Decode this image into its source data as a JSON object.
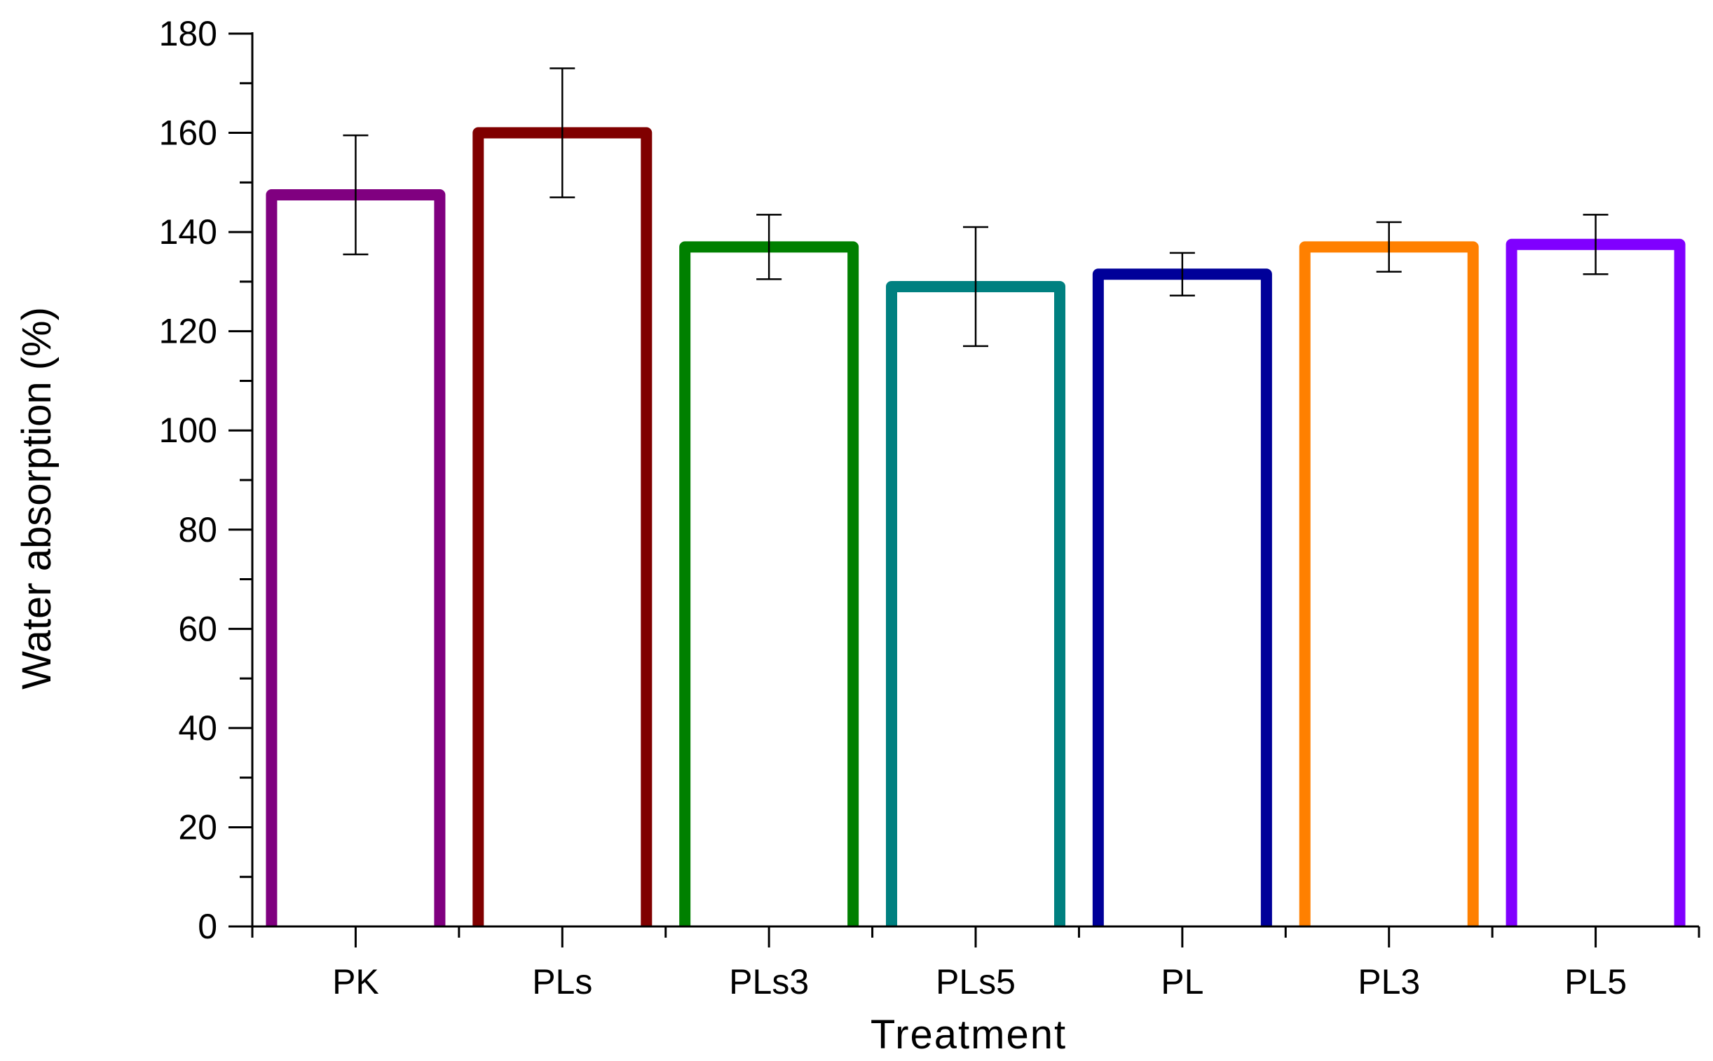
{
  "chart_data": {
    "type": "bar",
    "title": "",
    "xlabel": "Treatment",
    "ylabel": "Water absorption (%)",
    "ylim": [
      0,
      180
    ],
    "yticks": [
      0,
      20,
      40,
      60,
      80,
      100,
      120,
      140,
      160,
      180
    ],
    "y_minor_step": 10,
    "grid": false,
    "bar_style": "outline",
    "categories": [
      "PK",
      "PLs",
      "PLs3",
      "PLs5",
      "PL",
      "PL3",
      "PL5"
    ],
    "values": [
      147.5,
      160,
      137,
      129,
      131.5,
      137,
      137.5
    ],
    "error": [
      12,
      13,
      6.5,
      12,
      4.3,
      5,
      6
    ],
    "colors": [
      "#800080",
      "#800000",
      "#008000",
      "#008080",
      "#000099",
      "#FF8000",
      "#8000FF"
    ],
    "axis_color": "#000000",
    "errorbar_color": "#000000"
  }
}
